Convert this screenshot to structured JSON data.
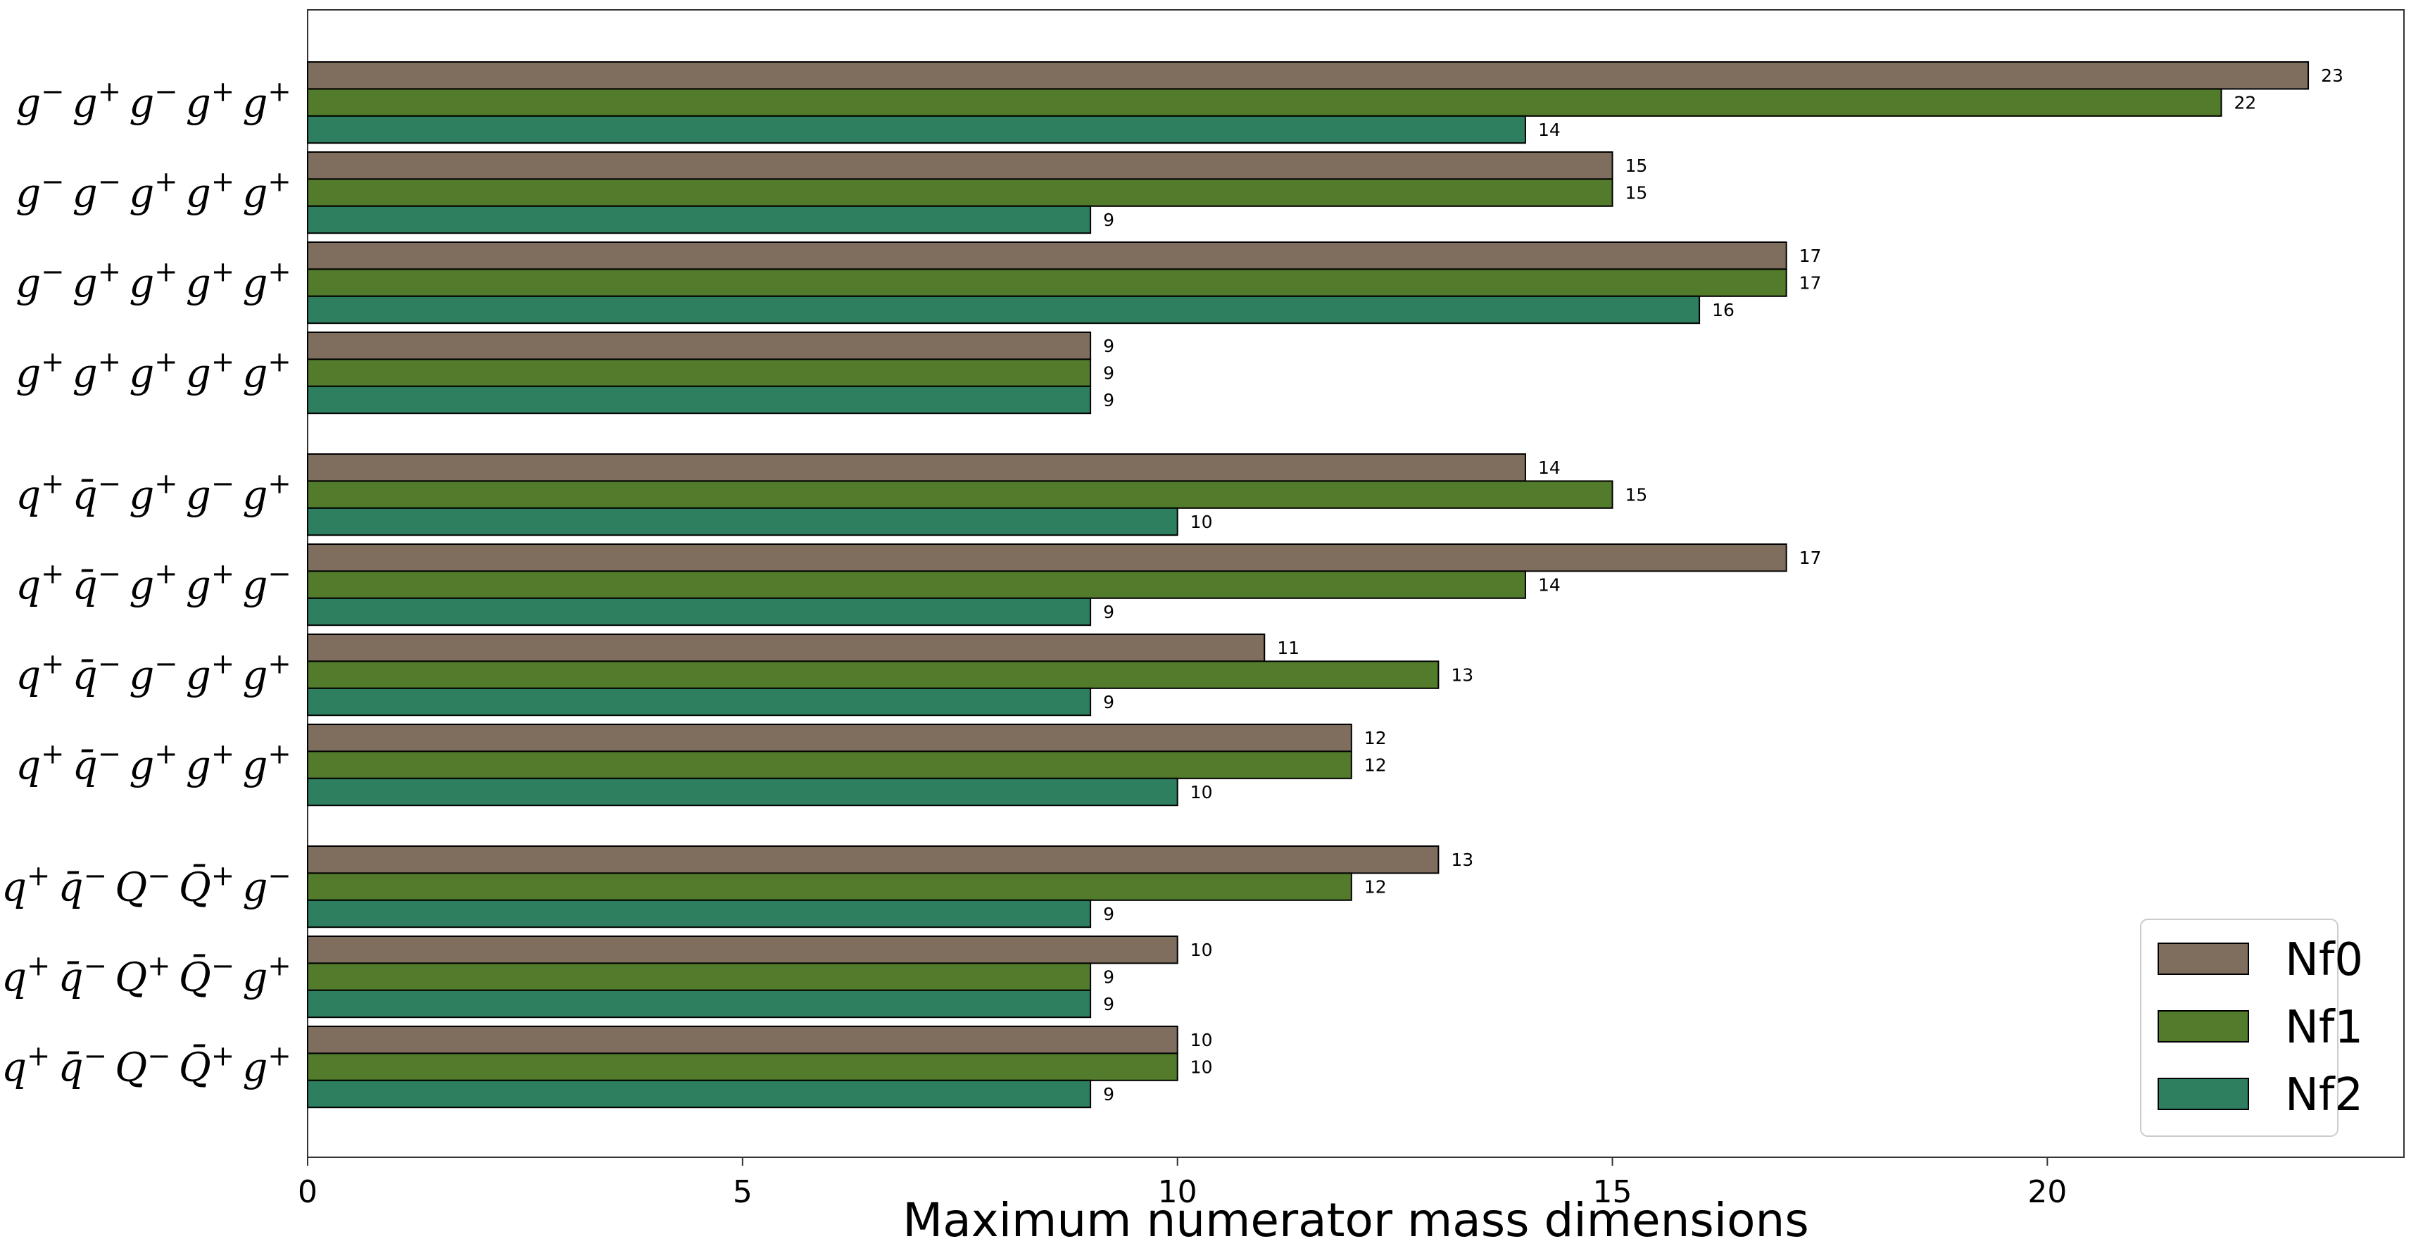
{
  "chart_data": {
    "type": "bar",
    "orientation": "horizontal",
    "xlabel": "Maximum numerator mass dimensions",
    "xlim": [
      0,
      24.1
    ],
    "xticks": [
      0,
      5,
      10,
      15,
      20
    ],
    "grid": false,
    "legend_position": "bottom-right",
    "categories": [
      {
        "id": "c1",
        "parts": [
          [
            "g",
            "−"
          ],
          [
            "g",
            "+"
          ],
          [
            "g",
            "−"
          ],
          [
            "g",
            "+"
          ],
          [
            "g",
            "+"
          ]
        ],
        "text": "g−g+g−g+g+"
      },
      {
        "id": "c2",
        "parts": [
          [
            "g",
            "−"
          ],
          [
            "g",
            "−"
          ],
          [
            "g",
            "+"
          ],
          [
            "g",
            "+"
          ],
          [
            "g",
            "+"
          ]
        ],
        "text": "g−g−g+g+g+"
      },
      {
        "id": "c3",
        "parts": [
          [
            "g",
            "−"
          ],
          [
            "g",
            "+"
          ],
          [
            "g",
            "+"
          ],
          [
            "g",
            "+"
          ],
          [
            "g",
            "+"
          ]
        ],
        "text": "g−g+g+g+g+"
      },
      {
        "id": "c4",
        "parts": [
          [
            "g",
            "+"
          ],
          [
            "g",
            "+"
          ],
          [
            "g",
            "+"
          ],
          [
            "g",
            "+"
          ],
          [
            "g",
            "+"
          ]
        ],
        "text": "g+g+g+g+g+"
      },
      {
        "id": "c5",
        "parts": [
          [
            "q",
            "+"
          ],
          [
            "q̄",
            "−"
          ],
          [
            "g",
            "+"
          ],
          [
            "g",
            "−"
          ],
          [
            "g",
            "+"
          ]
        ],
        "text": "q+q̄−g+g−g+"
      },
      {
        "id": "c6",
        "parts": [
          [
            "q",
            "+"
          ],
          [
            "q̄",
            "−"
          ],
          [
            "g",
            "+"
          ],
          [
            "g",
            "+"
          ],
          [
            "g",
            "−"
          ]
        ],
        "text": "q+q̄−g+g+g−"
      },
      {
        "id": "c7",
        "parts": [
          [
            "q",
            "+"
          ],
          [
            "q̄",
            "−"
          ],
          [
            "g",
            "−"
          ],
          [
            "g",
            "+"
          ],
          [
            "g",
            "+"
          ]
        ],
        "text": "q+q̄−g−g+g+"
      },
      {
        "id": "c8",
        "parts": [
          [
            "q",
            "+"
          ],
          [
            "q̄",
            "−"
          ],
          [
            "g",
            "+"
          ],
          [
            "g",
            "+"
          ],
          [
            "g",
            "+"
          ]
        ],
        "text": "q+q̄−g+g+g+"
      },
      {
        "id": "c9",
        "parts": [
          [
            "q",
            "+"
          ],
          [
            "q̄",
            "−"
          ],
          [
            "Q",
            "−"
          ],
          [
            "Q̄",
            "+"
          ],
          [
            "g",
            "−"
          ]
        ],
        "text": "q+q̄−Q−Q̄+g−"
      },
      {
        "id": "c10",
        "parts": [
          [
            "q",
            "+"
          ],
          [
            "q̄",
            "−"
          ],
          [
            "Q",
            "+"
          ],
          [
            "Q̄",
            "−"
          ],
          [
            "g",
            "+"
          ]
        ],
        "text": "q+q̄−Q+Q̄−g+"
      },
      {
        "id": "c11",
        "parts": [
          [
            "q",
            "+"
          ],
          [
            "q̄",
            "−"
          ],
          [
            "Q",
            "−"
          ],
          [
            "Q̄",
            "+"
          ],
          [
            "g",
            "+"
          ]
        ],
        "text": "q+q̄−Q−Q̄+g+"
      }
    ],
    "groups": [
      4,
      4,
      3
    ],
    "series": [
      {
        "name": "Nf0",
        "color": "#7f6e5e",
        "values": [
          23,
          15,
          17,
          9,
          14,
          17,
          11,
          12,
          13,
          10,
          10
        ]
      },
      {
        "name": "Nf1",
        "color": "#527c2c",
        "values": [
          22,
          15,
          17,
          9,
          15,
          14,
          13,
          12,
          12,
          9,
          10
        ]
      },
      {
        "name": "Nf2",
        "color": "#2d7f5f",
        "values": [
          14,
          9,
          16,
          9,
          10,
          9,
          9,
          10,
          9,
          9,
          9
        ]
      }
    ]
  }
}
